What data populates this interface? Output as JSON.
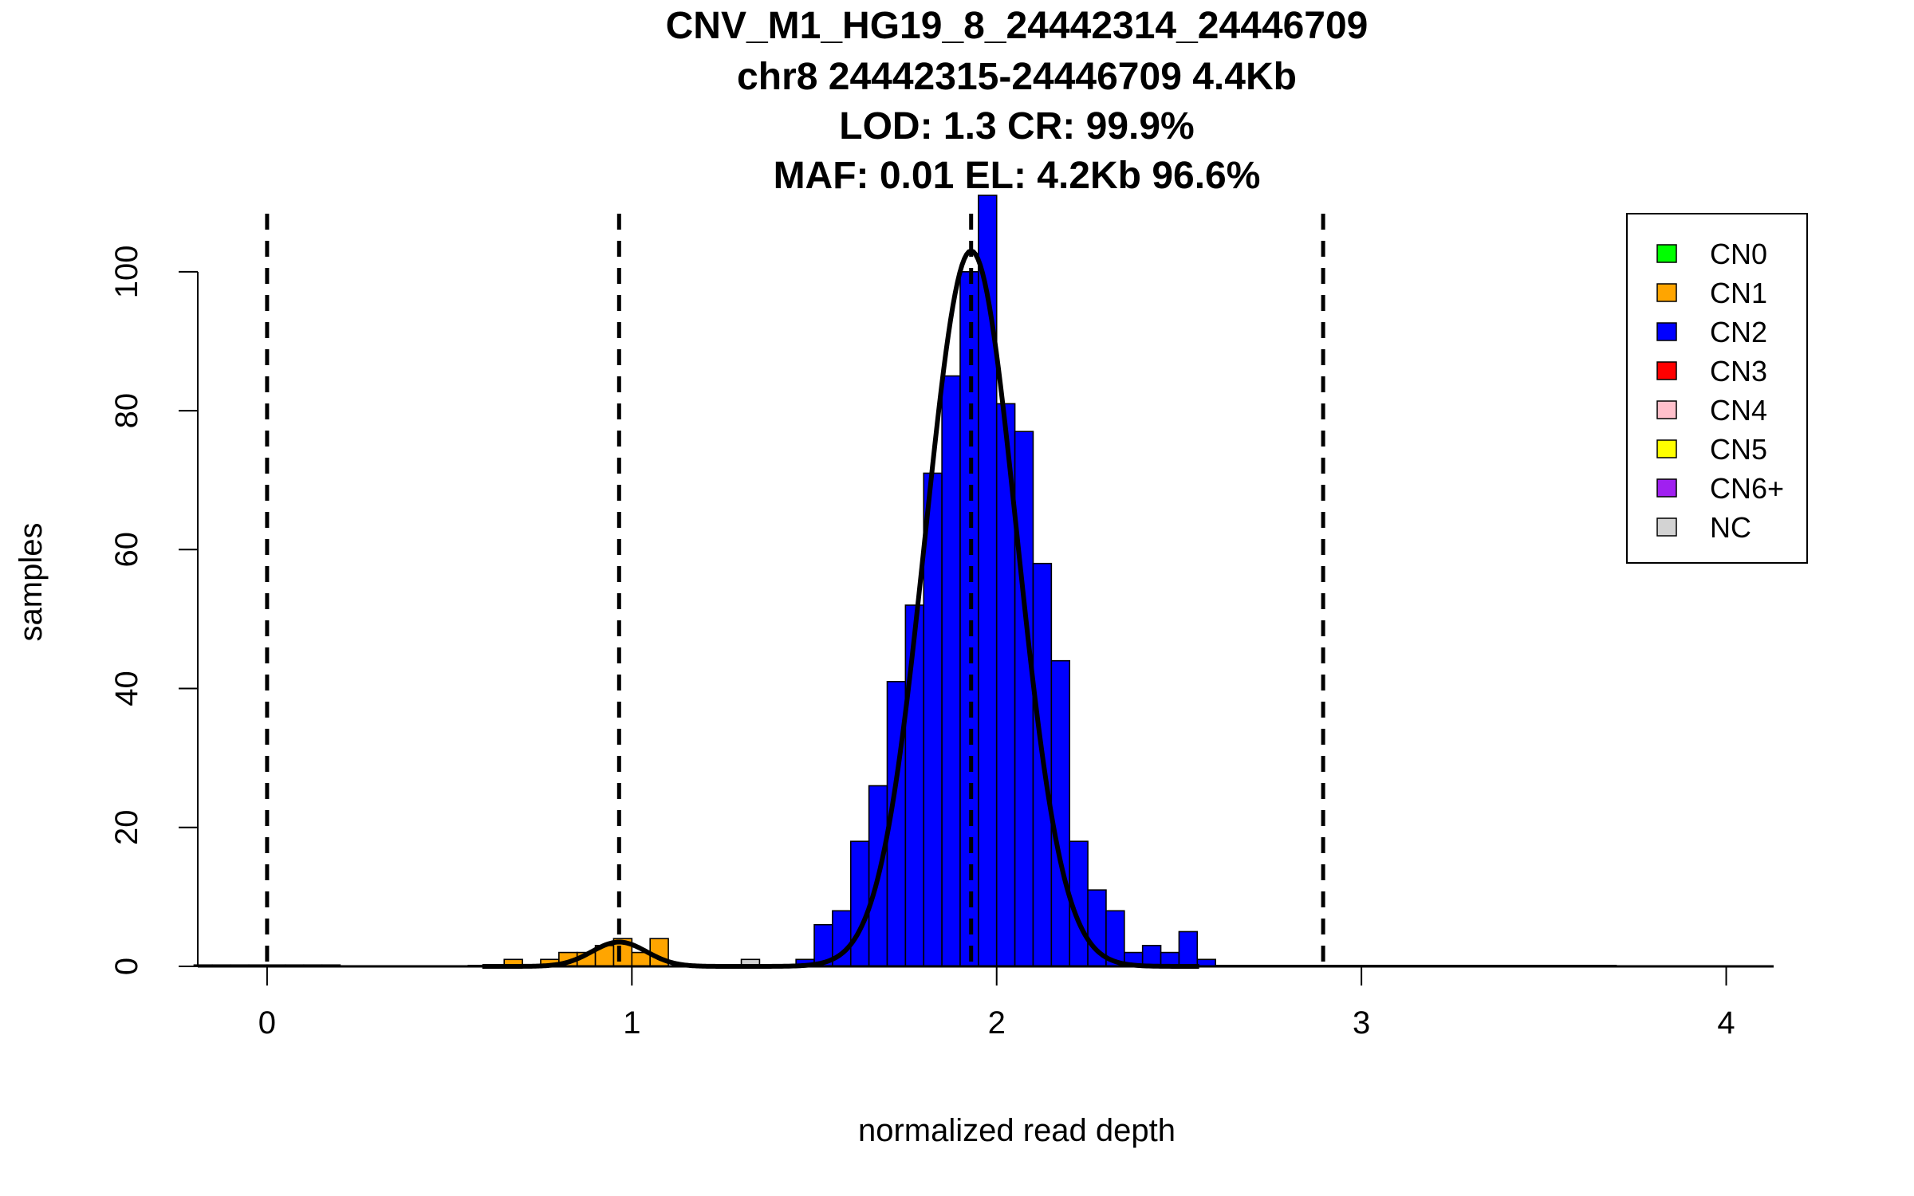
{
  "chart_data": {
    "type": "bar",
    "title_lines": [
      "CNV_M1_HG19_8_24442314_24446709",
      "chr8 24442315-24446709 4.4Kb",
      "LOD: 1.3 CR: 99.9%",
      "MAF: 0.01 EL: 4.2Kb 96.6%"
    ],
    "xlabel": "normalized read depth",
    "ylabel": "samples",
    "xlim": [
      -0.19,
      4.13
    ],
    "ylim": [
      0,
      111
    ],
    "x_ticks": [
      0,
      1,
      2,
      3,
      4
    ],
    "x_tick_labels": [
      "0",
      "1",
      "2",
      "3",
      "4"
    ],
    "y_ticks": [
      0,
      20,
      40,
      60,
      80,
      100
    ],
    "y_tick_labels": [
      "0",
      "20",
      "40",
      "60",
      "80",
      "100"
    ],
    "bin_width": 0.05,
    "bars": [
      {
        "x0": -0.2,
        "h": 0.2,
        "cn": "CN0"
      },
      {
        "x0": -0.15,
        "h": 0.2,
        "cn": "CN0"
      },
      {
        "x0": -0.1,
        "h": 0.2,
        "cn": "CN0"
      },
      {
        "x0": -0.05,
        "h": 0.2,
        "cn": "CN0"
      },
      {
        "x0": 0.0,
        "h": 0.2,
        "cn": "CN0"
      },
      {
        "x0": 0.05,
        "h": 0.2,
        "cn": "CN0"
      },
      {
        "x0": 0.1,
        "h": 0.2,
        "cn": "CN0"
      },
      {
        "x0": 0.15,
        "h": 0.2,
        "cn": "CN0"
      },
      {
        "x0": 0.65,
        "h": 1,
        "cn": "CN1"
      },
      {
        "x0": 0.75,
        "h": 1,
        "cn": "CN1"
      },
      {
        "x0": 0.8,
        "h": 2,
        "cn": "CN1"
      },
      {
        "x0": 0.85,
        "h": 2,
        "cn": "CN1"
      },
      {
        "x0": 0.9,
        "h": 3,
        "cn": "CN1"
      },
      {
        "x0": 0.95,
        "h": 4,
        "cn": "CN1"
      },
      {
        "x0": 1.0,
        "h": 2,
        "cn": "CN1"
      },
      {
        "x0": 1.05,
        "h": 4,
        "cn": "CN1"
      },
      {
        "x0": 1.3,
        "h": 1,
        "cn": "NC"
      },
      {
        "x0": 1.45,
        "h": 1,
        "cn": "CN2"
      },
      {
        "x0": 1.5,
        "h": 6,
        "cn": "CN2"
      },
      {
        "x0": 1.55,
        "h": 8,
        "cn": "CN2"
      },
      {
        "x0": 1.6,
        "h": 18,
        "cn": "CN2"
      },
      {
        "x0": 1.65,
        "h": 26,
        "cn": "CN2"
      },
      {
        "x0": 1.7,
        "h": 41,
        "cn": "CN2"
      },
      {
        "x0": 1.75,
        "h": 52,
        "cn": "CN2"
      },
      {
        "x0": 1.8,
        "h": 71,
        "cn": "CN2"
      },
      {
        "x0": 1.85,
        "h": 85,
        "cn": "CN2"
      },
      {
        "x0": 1.9,
        "h": 100,
        "cn": "CN2"
      },
      {
        "x0": 1.95,
        "h": 111,
        "cn": "CN2"
      },
      {
        "x0": 2.0,
        "h": 81,
        "cn": "CN2"
      },
      {
        "x0": 2.05,
        "h": 77,
        "cn": "CN2"
      },
      {
        "x0": 2.1,
        "h": 58,
        "cn": "CN2"
      },
      {
        "x0": 2.15,
        "h": 44,
        "cn": "CN2"
      },
      {
        "x0": 2.2,
        "h": 18,
        "cn": "CN2"
      },
      {
        "x0": 2.25,
        "h": 11,
        "cn": "CN2"
      },
      {
        "x0": 2.3,
        "h": 8,
        "cn": "CN2"
      },
      {
        "x0": 2.35,
        "h": 2,
        "cn": "CN2"
      },
      {
        "x0": 2.4,
        "h": 3,
        "cn": "CN2"
      },
      {
        "x0": 2.45,
        "h": 2,
        "cn": "CN2"
      },
      {
        "x0": 2.5,
        "h": 5,
        "cn": "CN2"
      },
      {
        "x0": 2.55,
        "h": 1,
        "cn": "CN2"
      }
    ],
    "baseline_segments": [
      [
        0.55,
        0.75
      ],
      [
        2.6,
        3.7
      ]
    ],
    "dashed_lines_x": [
      0.0,
      0.965,
      1.93,
      2.895
    ],
    "fit_curves": [
      {
        "mean": 0.965,
        "sd": 0.075,
        "peak": 3.5
      },
      {
        "mean": 1.93,
        "sd": 0.125,
        "peak": 103
      }
    ],
    "legend_position": "top-right",
    "legend": [
      {
        "label": "CN0",
        "color": "#00ff00"
      },
      {
        "label": "CN1",
        "color": "#ffa500"
      },
      {
        "label": "CN2",
        "color": "#0000ff"
      },
      {
        "label": "CN3",
        "color": "#ff0000"
      },
      {
        "label": "CN4",
        "color": "#ffc0cb"
      },
      {
        "label": "CN5",
        "color": "#ffff00"
      },
      {
        "label": "CN6+",
        "color": "#a020f0"
      },
      {
        "label": "NC",
        "color": "#d3d3d3"
      }
    ]
  }
}
